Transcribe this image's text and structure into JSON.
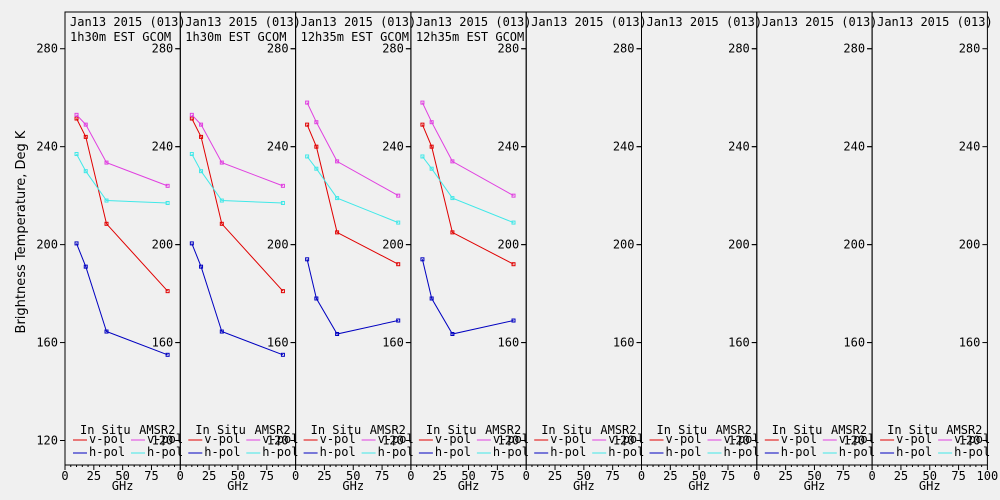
{
  "ylabel": "Brightness Temperature, Deg K",
  "xlabel": "GHz",
  "legend": {
    "in_situ": "In Situ",
    "amsr2": "AMSR2",
    "vpol": "v-pol",
    "hpol": "h-pol"
  },
  "colors": {
    "in_situ_v": "#e00000",
    "in_situ_h": "#0000c0",
    "amsr2_v": "#e040e0",
    "amsr2_h": "#40e8e8"
  },
  "chart_data": [
    {
      "type": "line",
      "title": [
        "Jan13 2015 (013)",
        "1h30m EST GCOM"
      ],
      "xlabel": "GHz",
      "ylabel": "Brightness Temperature, Deg K",
      "xlim": [
        0,
        100
      ],
      "ylim": [
        110,
        295
      ],
      "yticks": [
        120,
        160,
        200,
        240,
        280
      ],
      "series": [
        {
          "name": "In Situ v-pol",
          "x": [
            10,
            18,
            36,
            89
          ],
          "y": [
            251.5,
            244,
            208.5,
            181
          ]
        },
        {
          "name": "In Situ h-pol",
          "x": [
            10,
            18,
            36,
            89
          ],
          "y": [
            200.5,
            191,
            164.5,
            155
          ]
        },
        {
          "name": "AMSR2 v-pol",
          "x": [
            10,
            18,
            36,
            89
          ],
          "y": [
            253,
            249,
            233.5,
            224
          ]
        },
        {
          "name": "AMSR2 h-pol",
          "x": [
            10,
            18,
            36,
            89
          ],
          "y": [
            237,
            230,
            218,
            217
          ]
        }
      ]
    },
    {
      "type": "line",
      "title": [
        "Jan13 2015 (013)",
        "1h30m EST GCOM"
      ],
      "xlabel": "GHz",
      "ylabel": "",
      "xlim": [
        0,
        100
      ],
      "ylim": [
        110,
        295
      ],
      "yticks": [
        120,
        160,
        200,
        240,
        280
      ],
      "series": [
        {
          "name": "In Situ v-pol",
          "x": [
            10,
            18,
            36,
            89
          ],
          "y": [
            251.5,
            244,
            208.5,
            181
          ]
        },
        {
          "name": "In Situ h-pol",
          "x": [
            10,
            18,
            36,
            89
          ],
          "y": [
            200.5,
            191,
            164.5,
            155
          ]
        },
        {
          "name": "AMSR2 v-pol",
          "x": [
            10,
            18,
            36,
            89
          ],
          "y": [
            253,
            249,
            233.5,
            224
          ]
        },
        {
          "name": "AMSR2 h-pol",
          "x": [
            10,
            18,
            36,
            89
          ],
          "y": [
            237,
            230,
            218,
            217
          ]
        }
      ]
    },
    {
      "type": "line",
      "title": [
        "Jan13 2015 (013)",
        "12h35m EST GCOM"
      ],
      "xlabel": "GHz",
      "ylabel": "",
      "xlim": [
        0,
        100
      ],
      "ylim": [
        110,
        295
      ],
      "yticks": [
        120,
        160,
        200,
        240,
        280
      ],
      "series": [
        {
          "name": "In Situ v-pol",
          "x": [
            10,
            18,
            36,
            89
          ],
          "y": [
            249,
            240,
            205,
            192
          ]
        },
        {
          "name": "In Situ h-pol",
          "x": [
            10,
            18,
            36,
            89
          ],
          "y": [
            194,
            178,
            163.5,
            169
          ]
        },
        {
          "name": "AMSR2 v-pol",
          "x": [
            10,
            18,
            36,
            89
          ],
          "y": [
            258,
            250,
            234,
            220
          ]
        },
        {
          "name": "AMSR2 h-pol",
          "x": [
            10,
            18,
            36,
            89
          ],
          "y": [
            236,
            231,
            219,
            209
          ]
        }
      ]
    },
    {
      "type": "line",
      "title": [
        "Jan13 2015 (013)",
        "12h35m EST GCOM"
      ],
      "xlabel": "GHz",
      "ylabel": "",
      "xlim": [
        0,
        100
      ],
      "ylim": [
        110,
        295
      ],
      "yticks": [
        120,
        160,
        200,
        240,
        280
      ],
      "series": [
        {
          "name": "In Situ v-pol",
          "x": [
            10,
            18,
            36,
            89
          ],
          "y": [
            249,
            240,
            205,
            192
          ]
        },
        {
          "name": "In Situ h-pol",
          "x": [
            10,
            18,
            36,
            89
          ],
          "y": [
            194,
            178,
            163.5,
            169
          ]
        },
        {
          "name": "AMSR2 v-pol",
          "x": [
            10,
            18,
            36,
            89
          ],
          "y": [
            258,
            250,
            234,
            220
          ]
        },
        {
          "name": "AMSR2 h-pol",
          "x": [
            10,
            18,
            36,
            89
          ],
          "y": [
            236,
            231,
            219,
            209
          ]
        }
      ]
    },
    {
      "type": "line",
      "title": [
        "Jan13 2015 (013)"
      ],
      "xlabel": "GHz",
      "ylabel": "",
      "xlim": [
        0,
        100
      ],
      "ylim": [
        110,
        295
      ],
      "yticks": [
        120,
        160,
        200,
        240,
        280
      ],
      "series": []
    },
    {
      "type": "line",
      "title": [
        "Jan13 2015 (013)"
      ],
      "xlabel": "GHz",
      "ylabel": "",
      "xlim": [
        0,
        100
      ],
      "ylim": [
        110,
        295
      ],
      "yticks": [
        120,
        160,
        200,
        240,
        280
      ],
      "series": []
    },
    {
      "type": "line",
      "title": [
        "Jan13 2015 (013)"
      ],
      "xlabel": "GHz",
      "ylabel": "",
      "xlim": [
        0,
        100
      ],
      "ylim": [
        110,
        295
      ],
      "yticks": [
        120,
        160,
        200,
        240,
        280
      ],
      "series": []
    },
    {
      "type": "line",
      "title": [
        "Jan13 2015 (013)"
      ],
      "xlabel": "GHz",
      "ylabel": "",
      "xlim": [
        0,
        100
      ],
      "ylim": [
        110,
        295
      ],
      "yticks": [
        120,
        160,
        200,
        240,
        280
      ],
      "series": []
    }
  ]
}
